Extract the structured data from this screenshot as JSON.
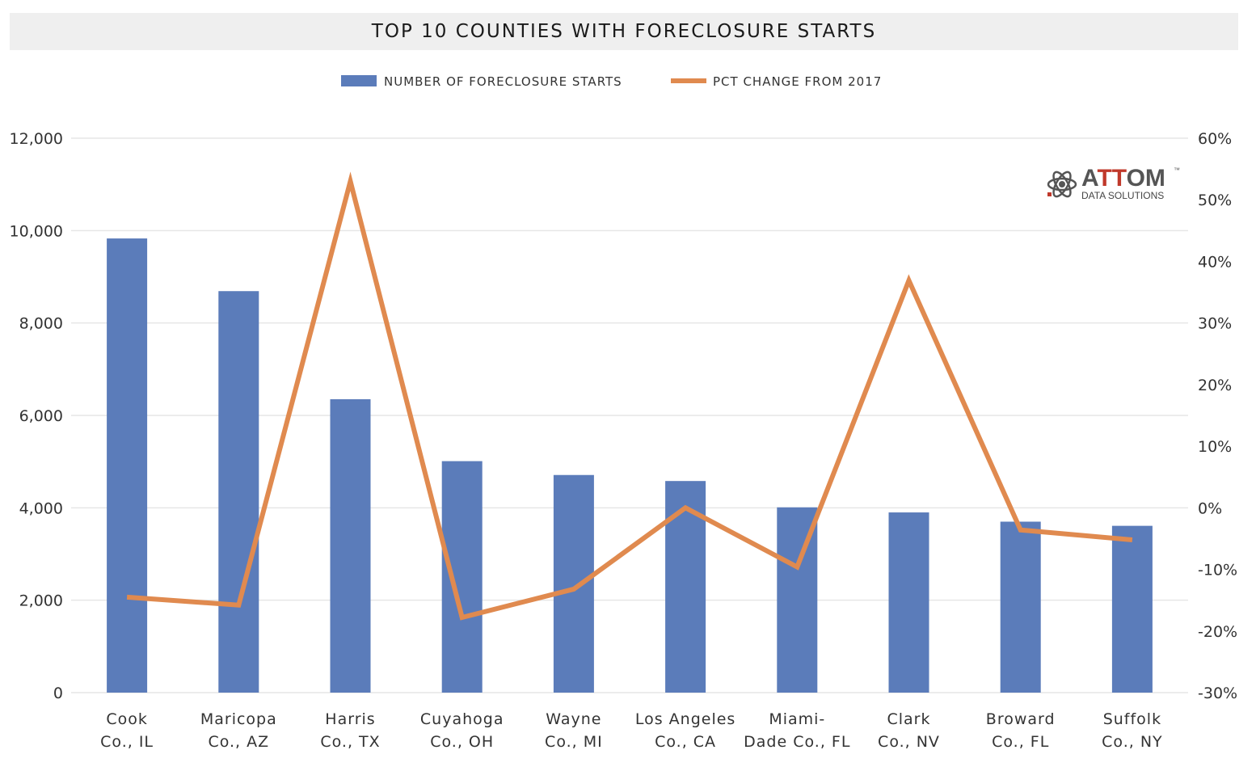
{
  "title": "TOP 10 COUNTIES WITH FORECLOSURE STARTS",
  "logo": {
    "brand": "ATTOM",
    "brand_pre": "A",
    "brand_red": "TT",
    "brand_post": "OM",
    "tm": "™",
    "sub": "DATA SOLUTIONS",
    "icon": "atom-icon"
  },
  "colors": {
    "bar": "#5b7cba",
    "line": "#e08a4f",
    "grid": "#e6e6e6"
  },
  "chart_data": {
    "type": "bar",
    "title": "TOP 10 COUNTIES WITH FORECLOSURE STARTS",
    "legend_position": "top-center",
    "grid": true,
    "categories": [
      [
        "Cook",
        "Co., IL"
      ],
      [
        "Maricopa",
        "Co., AZ"
      ],
      [
        "Harris",
        "Co., TX"
      ],
      [
        "Cuyahoga",
        "Co., OH"
      ],
      [
        "Wayne",
        "Co., MI"
      ],
      [
        "Los Angeles",
        "Co., CA"
      ],
      [
        "Miami-",
        "Dade Co., FL"
      ],
      [
        "Clark",
        "Co., NV"
      ],
      [
        "Broward",
        "Co., FL"
      ],
      [
        "Suffolk",
        "Co., NY"
      ]
    ],
    "series": [
      {
        "name": "NUMBER OF FORECLOSURE STARTS",
        "type": "bar",
        "axis": "left",
        "values": [
          9830,
          8690,
          6350,
          5010,
          4710,
          4580,
          4010,
          3900,
          3700,
          3610
        ]
      },
      {
        "name": "PCT CHANGE FROM 2017",
        "type": "line",
        "axis": "right",
        "values": [
          -14.5,
          -15.8,
          53.0,
          -17.8,
          -13.2,
          0.0,
          -9.6,
          36.9,
          -3.6,
          -5.2
        ]
      }
    ],
    "y_left": {
      "min": 0,
      "max": 12000,
      "ticks": [
        0,
        2000,
        4000,
        6000,
        8000,
        10000,
        12000
      ],
      "tick_labels": [
        "0",
        "2,000",
        "4,000",
        "6,000",
        "8,000",
        "10,000",
        "12,000"
      ]
    },
    "y_right": {
      "min": -30,
      "max": 60,
      "ticks": [
        -30,
        -20,
        -10,
        0,
        10,
        20,
        30,
        40,
        50,
        60
      ],
      "tick_labels": [
        "-30%",
        "-20%",
        "-10%",
        "0%",
        "10%",
        "20%",
        "30%",
        "40%",
        "50%",
        "60%"
      ]
    }
  }
}
